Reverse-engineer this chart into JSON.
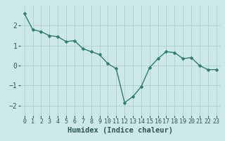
{
  "x": [
    0,
    1,
    2,
    3,
    4,
    5,
    6,
    7,
    8,
    9,
    10,
    11,
    12,
    13,
    14,
    15,
    16,
    17,
    18,
    19,
    20,
    21,
    22,
    23
  ],
  "y": [
    2.6,
    1.8,
    1.7,
    1.5,
    1.45,
    1.2,
    1.25,
    0.85,
    0.7,
    0.55,
    0.1,
    -0.15,
    -1.85,
    -1.55,
    -1.05,
    -0.1,
    0.35,
    0.7,
    0.65,
    0.35,
    0.4,
    0.0,
    -0.2,
    -0.2
  ],
  "line_color": "#2e7d6e",
  "marker": "D",
  "marker_size": 2.5,
  "bg_color": "#cce8e8",
  "grid_color": "#b0cccc",
  "xlabel": "Humidex (Indice chaleur)",
  "xlabel_fontsize": 7.5,
  "tick_fontsize": 6,
  "xlim": [
    -0.5,
    23.5
  ],
  "ylim": [
    -2.5,
    3.0
  ],
  "yticks": [
    -2,
    -1,
    0,
    1,
    2
  ],
  "xticks": [
    0,
    1,
    2,
    3,
    4,
    5,
    6,
    7,
    8,
    9,
    10,
    11,
    12,
    13,
    14,
    15,
    16,
    17,
    18,
    19,
    20,
    21,
    22,
    23
  ]
}
